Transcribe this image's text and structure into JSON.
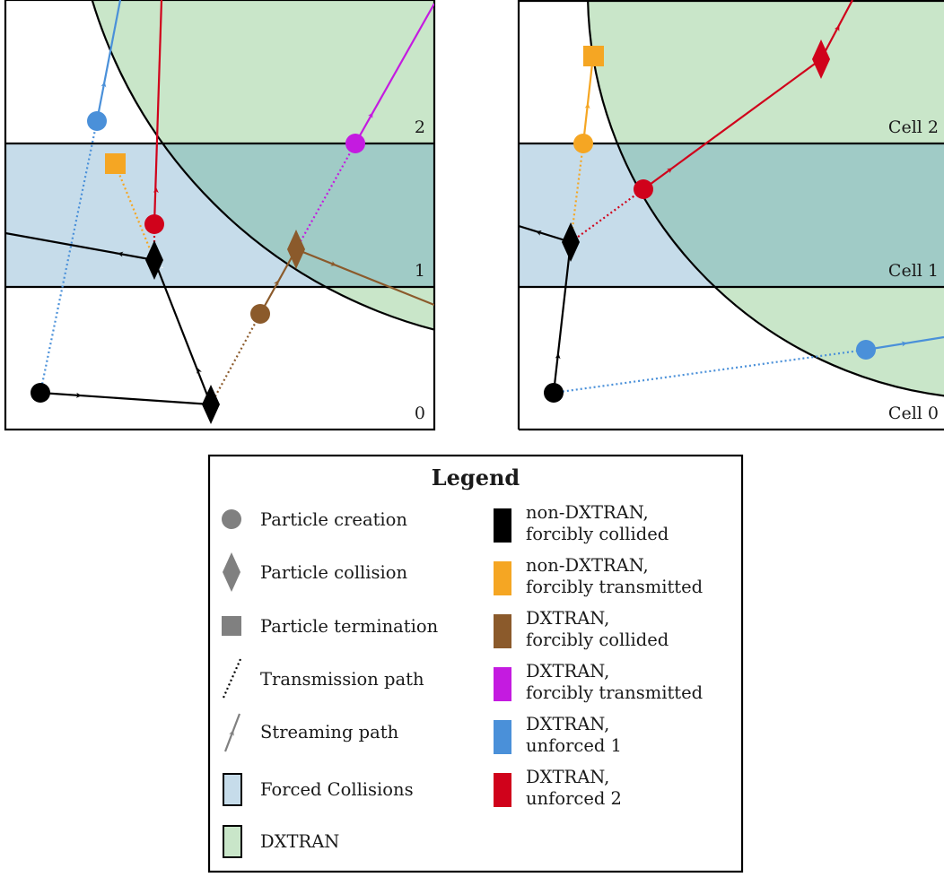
{
  "colors": {
    "black": "#000000",
    "orange": "#f5a623",
    "brown": "#8b5a2b",
    "purple": "#c41be0",
    "blue": "#4a90d9",
    "red": "#d0021b",
    "gray": "#808080",
    "forced_collision_fill": "#c6dcea",
    "dxtran_fill": "#c9e6c9",
    "overlap_fill": "#a0cbc6"
  },
  "left_panel": {
    "cell_labels": [
      "2",
      "1",
      "0"
    ]
  },
  "right_panel": {
    "cell_labels": [
      "Cell 2",
      "Cell 1",
      "Cell 0"
    ]
  },
  "legend": {
    "title": "Legend",
    "symbols": [
      {
        "icon": "circle-icon",
        "label": "Particle creation"
      },
      {
        "icon": "diamond-icon",
        "label": "Particle collision"
      },
      {
        "icon": "square-icon",
        "label": "Particle termination"
      },
      {
        "icon": "dotted-line-icon",
        "label": "Transmission path"
      },
      {
        "icon": "arrow-line-icon",
        "label": "Streaming path"
      },
      {
        "icon": "blue-box-icon",
        "label": "Forced Collisions"
      },
      {
        "icon": "green-box-icon",
        "label": "DXTRAN"
      }
    ],
    "particles": [
      {
        "color": "#000000",
        "line1": "non-DXTRAN,",
        "line2": "forcibly collided"
      },
      {
        "color": "#f5a623",
        "line1": "non-DXTRAN,",
        "line2": "forcibly transmitted"
      },
      {
        "color": "#8b5a2b",
        "line1": "DXTRAN,",
        "line2": "forcibly collided"
      },
      {
        "color": "#c41be0",
        "line1": "DXTRAN,",
        "line2": "forcibly transmitted"
      },
      {
        "color": "#4a90d9",
        "line1": "DXTRAN,",
        "line2": "unforced 1"
      },
      {
        "color": "#d0021b",
        "line1": "DXTRAN,",
        "line2": "unforced 2"
      }
    ]
  }
}
